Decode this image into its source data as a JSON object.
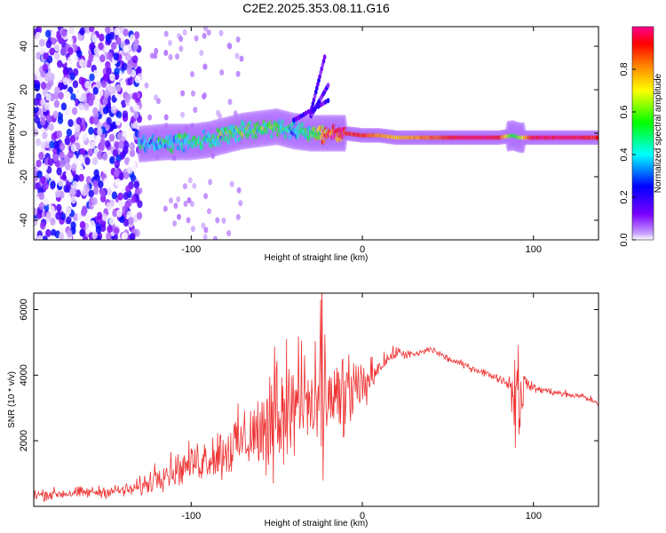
{
  "chart_data": [
    {
      "type": "heatmap",
      "title": "C2E2.2025.353.08.11.G16",
      "xlabel": "Height of straight line (km)",
      "ylabel": "Frequency (Hz)",
      "xlim": [
        -192,
        138
      ],
      "ylim": [
        -49,
        49
      ],
      "xticks": [
        -100,
        0,
        100
      ],
      "xtick_labels": [
        "-100",
        "0",
        "100"
      ],
      "yticks": [
        -40,
        -20,
        0,
        20,
        40
      ],
      "ytick_labels": [
        "-40",
        "-20",
        "0",
        "20",
        "40"
      ],
      "colorbar": {
        "label": "Normalized spectral amplitude",
        "range": [
          0,
          1
        ],
        "ticks": [
          0.0,
          0.2,
          0.4,
          0.6,
          0.8
        ],
        "tick_labels": [
          "0.0",
          "0.2",
          "0.4",
          "0.6",
          "0.8"
        ],
        "colors": [
          "#ffffff",
          "#7a00ff",
          "#0000ff",
          "#00ffff",
          "#00ff00",
          "#ffff00",
          "#ff8000",
          "#ff0000",
          "#ff0090"
        ]
      },
      "trace": {
        "x": [
          -130,
          -115,
          -100,
          -90,
          -80,
          -70,
          -60,
          -50,
          -45,
          -40,
          -30,
          -20,
          -10,
          0,
          10,
          20,
          40,
          60,
          80,
          88,
          92,
          100,
          120,
          138
        ],
        "frequency": [
          -5,
          -4,
          -4,
          -3,
          -1,
          1,
          2,
          3,
          2,
          1,
          0,
          0,
          0,
          -1,
          -1,
          -2,
          -2,
          -2,
          -2,
          -1,
          -2,
          -2,
          -2,
          -2
        ],
        "amplitude": [
          0.35,
          0.4,
          0.45,
          0.45,
          0.5,
          0.5,
          0.55,
          0.5,
          0.45,
          0.4,
          0.5,
          0.85,
          0.9,
          0.9,
          0.8,
          0.75,
          0.85,
          0.95,
          0.95,
          0.5,
          0.6,
          0.95,
          0.95,
          0.9
        ]
      }
    },
    {
      "type": "line",
      "title": "",
      "xlabel": "Height of straight line (km)",
      "ylabel": "SNR (10 * v/v)",
      "xlim": [
        -192,
        138
      ],
      "ylim": [
        0,
        6500
      ],
      "xticks": [
        -100,
        0,
        100
      ],
      "xtick_labels": [
        "-100",
        "0",
        "100"
      ],
      "yticks": [
        2000,
        4000,
        6000
      ],
      "ytick_labels": [
        "2000",
        "4000",
        "6000"
      ],
      "series": [
        {
          "name": "SNR",
          "color": "#ee3333",
          "x": [
            -192,
            -170,
            -150,
            -135,
            -125,
            -120,
            -110,
            -100,
            -90,
            -80,
            -70,
            -60,
            -50,
            -40,
            -30,
            -20,
            -10,
            0,
            10,
            20,
            30,
            40,
            50,
            60,
            70,
            80,
            85,
            88,
            90,
            92,
            95,
            100,
            110,
            120,
            130,
            138
          ],
          "values": [
            350,
            400,
            450,
            500,
            700,
            1000,
            1100,
            1300,
            1500,
            1700,
            2000,
            2300,
            2600,
            2800,
            2900,
            3000,
            3200,
            3600,
            4300,
            4700,
            4600,
            4800,
            4500,
            4300,
            4100,
            3900,
            3750,
            3600,
            3500,
            3400,
            3800,
            3600,
            3500,
            3400,
            3350,
            3100
          ],
          "spread": [
            250,
            250,
            250,
            300,
            500,
            700,
            700,
            800,
            1000,
            1200,
            1400,
            1700,
            1900,
            2100,
            2200,
            2200,
            1800,
            1100,
            400,
            250,
            200,
            150,
            150,
            150,
            150,
            150,
            200,
            1500,
            2800,
            2000,
            300,
            200,
            150,
            150,
            150,
            150
          ]
        }
      ]
    }
  ]
}
